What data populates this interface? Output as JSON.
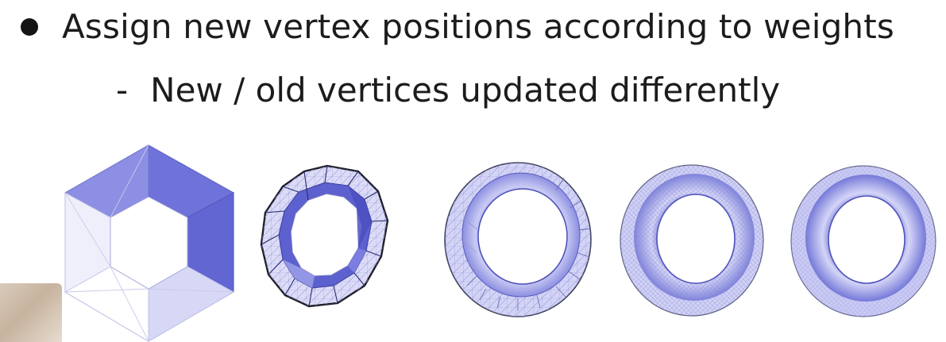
{
  "slide": {
    "bullet_text": "Assign new vertex positions according to weights",
    "sub_dash": "-",
    "sub_text": "New / old vertices updated differently"
  },
  "figure": {
    "stages": [
      {
        "name": "stage-0-hexagon"
      },
      {
        "name": "stage-1-subdivided"
      },
      {
        "name": "stage-2-subdivided"
      },
      {
        "name": "stage-3-subdivided"
      },
      {
        "name": "stage-4-smooth-torus"
      }
    ],
    "colors": {
      "light": "#e9e9fb",
      "mid": "#b8b9ef",
      "dark": "#6b6fd6",
      "edge": "#1e1e2a"
    }
  }
}
